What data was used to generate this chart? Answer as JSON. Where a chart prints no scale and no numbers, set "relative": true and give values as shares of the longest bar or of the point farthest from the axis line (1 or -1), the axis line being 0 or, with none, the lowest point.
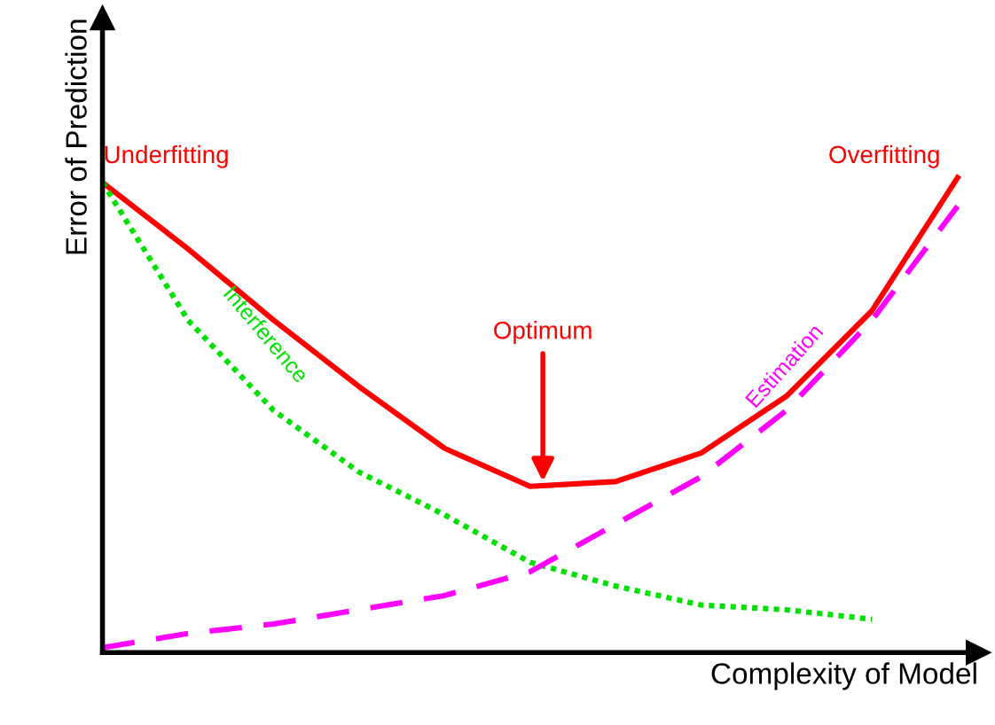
{
  "chart_data": {
    "type": "line",
    "relative": true,
    "xlabel": "Complexity of Model",
    "ylabel": "Error of Prediction",
    "legend": false,
    "categories": [
      null,
      null,
      null,
      null,
      null,
      null,
      null,
      null,
      null,
      null,
      null
    ],
    "series": [
      {
        "color": "#ff0000",
        "line_style": "solid",
        "values": [
          0.99,
          0.85,
          0.7,
          0.56,
          0.43,
          0.35,
          0.36,
          0.42,
          0.54,
          0.72,
          1.0
        ]
      },
      {
        "name": "Interference",
        "color": "#00e000",
        "line_style": "dotted",
        "values": [
          0.99,
          0.7,
          0.51,
          0.38,
          0.29,
          0.19,
          0.14,
          0.1,
          0.09,
          0.07,
          null
        ]
      },
      {
        "name": "Estimation",
        "color": "#ff00ff",
        "line_style": "dashed",
        "values": [
          0.01,
          0.04,
          0.06,
          0.09,
          0.12,
          0.17,
          0.27,
          0.37,
          0.51,
          0.7,
          0.94
        ]
      }
    ],
    "annotations": [
      "Underfitting",
      "Overfitting",
      "Optimum"
    ]
  }
}
